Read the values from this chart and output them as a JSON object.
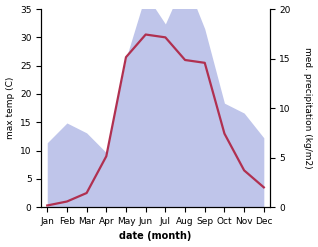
{
  "months": [
    "Jan",
    "Feb",
    "Mar",
    "Apr",
    "May",
    "Jun",
    "Jul",
    "Aug",
    "Sep",
    "Oct",
    "Nov",
    "Dec"
  ],
  "temperature": [
    0.3,
    1.0,
    2.5,
    9.0,
    26.5,
    30.5,
    30.0,
    26.0,
    25.5,
    13.0,
    6.5,
    3.5
  ],
  "precipitation": [
    6.5,
    8.5,
    7.5,
    5.5,
    15.0,
    21.5,
    18.5,
    23.0,
    18.0,
    10.5,
    9.5,
    7.0
  ],
  "temp_color": "#b03050",
  "precip_fill_color": "#b8bfe8",
  "temp_ylim": [
    0,
    35
  ],
  "precip_ylim": [
    0,
    20
  ],
  "temp_yticks": [
    0,
    5,
    10,
    15,
    20,
    25,
    30,
    35
  ],
  "precip_yticks": [
    0,
    5,
    10,
    15,
    20
  ],
  "xlabel": "date (month)",
  "ylabel_left": "max temp (C)",
  "ylabel_right": "med. precipitation (kg/m2)",
  "background_color": "#ffffff",
  "linewidth": 1.6,
  "ylabel_fontsize": 6.5,
  "tick_fontsize": 6.5,
  "xlabel_fontsize": 7.0
}
